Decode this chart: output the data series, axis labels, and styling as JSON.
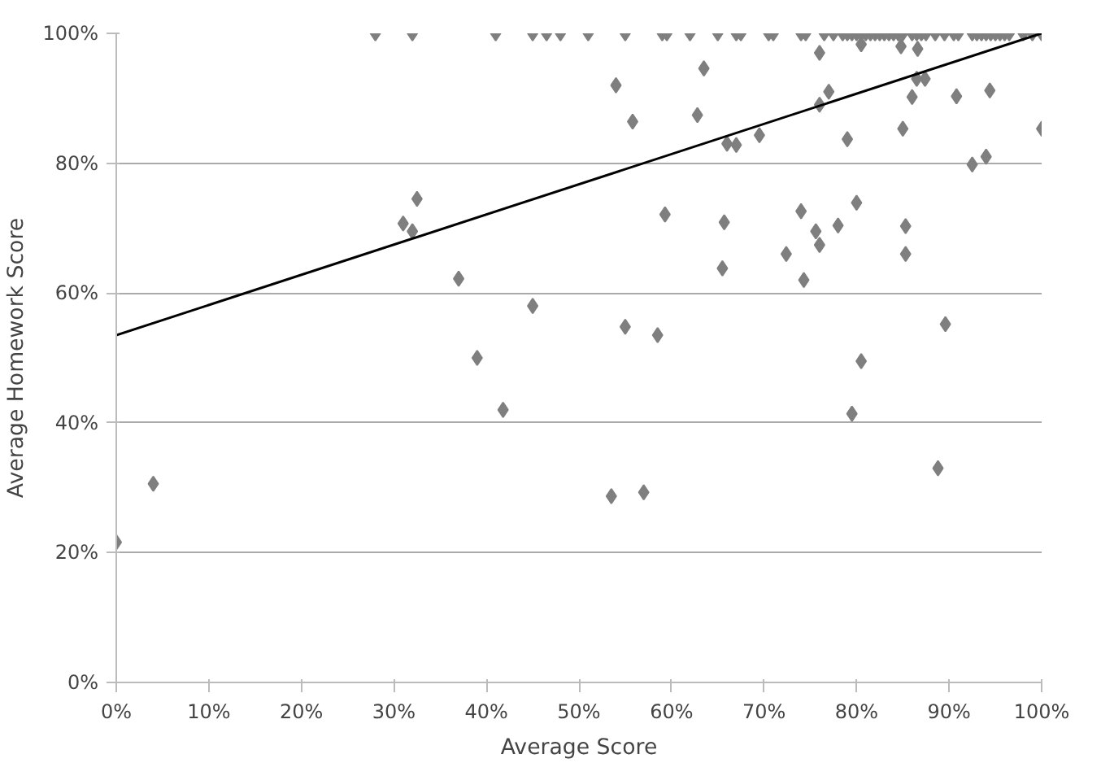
{
  "chart_data": {
    "type": "scatter",
    "xlabel": "Average Score",
    "ylabel": "Average Homework Score",
    "xlim": [
      0,
      100
    ],
    "ylim": [
      0,
      100
    ],
    "xticks": [
      {
        "value": 0,
        "label": "0%"
      },
      {
        "value": 10,
        "label": "10%"
      },
      {
        "value": 20,
        "label": "20%"
      },
      {
        "value": 30,
        "label": "30%"
      },
      {
        "value": 40,
        "label": "40%"
      },
      {
        "value": 50,
        "label": "50%"
      },
      {
        "value": 60,
        "label": "60%"
      },
      {
        "value": 70,
        "label": "70%"
      },
      {
        "value": 80,
        "label": "80%"
      },
      {
        "value": 90,
        "label": "90%"
      },
      {
        "value": 100,
        "label": "100%"
      }
    ],
    "yticks": [
      {
        "value": 0,
        "label": "0%"
      },
      {
        "value": 20,
        "label": "20%"
      },
      {
        "value": 40,
        "label": "40%"
      },
      {
        "value": 60,
        "label": "60%"
      },
      {
        "value": 80,
        "label": "80%"
      },
      {
        "value": 100,
        "label": "100%"
      }
    ],
    "grid": "y",
    "series": [
      {
        "color": "#7f7f7f",
        "marker": "diamond",
        "x": [
          0,
          4,
          31,
          32,
          32.5,
          37,
          39,
          41.8,
          45,
          53.5,
          54,
          55,
          55.8,
          57,
          58.5,
          59.3,
          62.8,
          63.5,
          65.5,
          65.7,
          66,
          67,
          69.5,
          72.4,
          74,
          74.3,
          75.6,
          76,
          76,
          77,
          76,
          78,
          79,
          79.5,
          80,
          80.5,
          80.5,
          84.8,
          85,
          85.3,
          85.3,
          86,
          86.5,
          86.6,
          87.4,
          88.8,
          89.6,
          90.8,
          92.5,
          94,
          94.4,
          100,
          28,
          32,
          41,
          45,
          46.5,
          48,
          51,
          55,
          59,
          59.5,
          62,
          65,
          67,
          67.5,
          70.5,
          71,
          74,
          74.5,
          76.5,
          77.5,
          78.5,
          79,
          79.5,
          80,
          80.5,
          81,
          81.5,
          82,
          82.5,
          83,
          83.5,
          84,
          84.5,
          85,
          86,
          86.5,
          87,
          87.5,
          88.5,
          89.5,
          90.5,
          91,
          92.5,
          93,
          93.5,
          94,
          94.5,
          95,
          95.5,
          96,
          96.5,
          98,
          99,
          100
        ],
        "values": [
          21.6,
          30.6,
          70.7,
          69.5,
          74.5,
          62.2,
          50,
          42,
          58,
          28.7,
          92,
          54.8,
          86.4,
          29.3,
          53.5,
          72.1,
          87.4,
          94.6,
          63.8,
          70.9,
          83,
          82.8,
          84.3,
          66,
          72.6,
          62,
          69.5,
          97,
          89,
          91,
          67.4,
          70.4,
          83.7,
          41.4,
          73.9,
          49.5,
          98.3,
          98,
          85.3,
          70.3,
          66,
          90.2,
          93,
          97.6,
          93,
          33,
          55.2,
          90.3,
          79.8,
          81,
          91.2,
          85.3,
          100,
          100,
          100,
          100,
          100,
          100,
          100,
          100,
          100,
          100,
          100,
          100,
          100,
          100,
          100,
          100,
          100,
          100,
          100,
          100,
          100,
          100,
          100,
          100,
          100,
          100,
          100,
          100,
          100,
          100,
          100,
          100,
          100,
          100,
          100,
          100,
          100,
          100,
          100,
          100,
          100,
          100,
          100,
          100,
          100,
          100,
          100,
          100,
          100,
          100,
          100,
          100,
          100,
          100
        ]
      },
      {
        "type": "line",
        "marker": "none",
        "color": "#000000",
        "x": [
          0,
          100
        ],
        "values": [
          53.5,
          100
        ]
      }
    ]
  }
}
